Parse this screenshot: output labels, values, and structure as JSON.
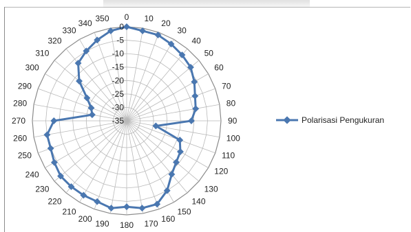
{
  "chart_data": {
    "type": "radar",
    "angles": [
      0,
      10,
      20,
      30,
      40,
      50,
      60,
      70,
      80,
      90,
      100,
      110,
      120,
      130,
      140,
      150,
      160,
      170,
      180,
      190,
      200,
      210,
      220,
      230,
      240,
      250,
      260,
      270,
      280,
      290,
      300,
      310,
      320,
      330,
      340,
      350
    ],
    "radial_ticks": [
      "0",
      "-5",
      "-10",
      "-15",
      "-20",
      "-25",
      "-30",
      "-35"
    ],
    "rlim": [
      -35,
      0
    ],
    "series": [
      {
        "name": "Polarisasi Pengukuran",
        "color": "#4a77b0",
        "values": [
          0,
          -1,
          -1,
          -2,
          -3,
          -4,
          -6,
          -8,
          -9,
          -11,
          -24,
          -14,
          -12,
          -11,
          -9,
          -5,
          -2,
          -2,
          -3,
          -2,
          -3,
          -3,
          -3,
          -3,
          -4,
          -5,
          -5,
          -8,
          -22,
          -21,
          -18,
          -12,
          -7,
          -5,
          -3,
          -1
        ]
      }
    ],
    "legend_position": "right",
    "grid": true
  }
}
